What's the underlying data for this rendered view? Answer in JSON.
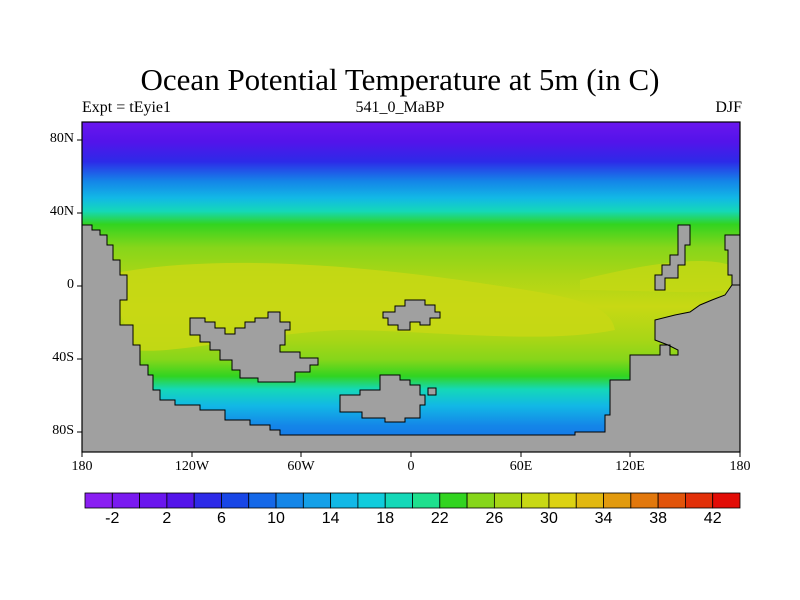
{
  "title": "Ocean Potential Temperature at 5m (in C)",
  "subtitle_left": "Expt = tEyie1",
  "subtitle_center": "541_0_MaBP",
  "subtitle_right": "DJF",
  "lat_labels": [
    "80N",
    "40N",
    "0",
    "40S",
    "80S"
  ],
  "lon_labels": [
    "180",
    "120W",
    "60W",
    "0",
    "60E",
    "120E",
    "180"
  ],
  "colorbar": {
    "labels": [
      "-2",
      "2",
      "6",
      "10",
      "14",
      "18",
      "22",
      "26",
      "30",
      "34",
      "38",
      "42"
    ],
    "colors": [
      "#8a1ef2",
      "#7a1af0",
      "#6a16ee",
      "#5314ea",
      "#2d2ae8",
      "#1846e6",
      "#1568e8",
      "#1486e8",
      "#14a0e8",
      "#12b8e6",
      "#10ccdc",
      "#14d8b8",
      "#1ee08e",
      "#32d420",
      "#86d61a",
      "#a8d616",
      "#c8d814",
      "#dcd212",
      "#e2b810",
      "#e29a0e",
      "#e2780c",
      "#e2540a",
      "#e23008",
      "#e20c06"
    ]
  },
  "map": {
    "land_color": "#a0a0a0",
    "region": "global, 180W to 180E, 90S to 90N"
  }
}
